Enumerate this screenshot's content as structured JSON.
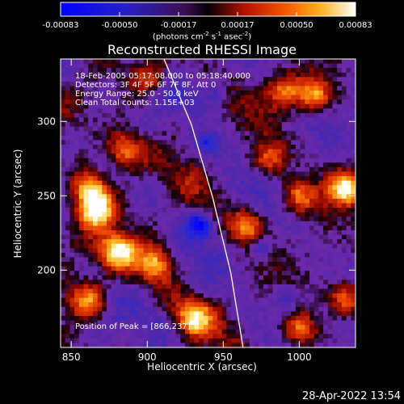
{
  "title": "Reconstructed RHESSI Image",
  "colorbar": {
    "tick_labels": [
      "-0.00083",
      "-0.00050",
      "-0.00017",
      "0.00017",
      "0.00050",
      "0.00083"
    ],
    "units": {
      "pre": "(photons cm",
      "exp1": "-2",
      "mid1": " s",
      "exp2": "-1",
      "mid2": " asec",
      "exp3": "-2",
      "post": ")"
    }
  },
  "info_lines": [
    "18-Feb-2005 05:17:08.000 to 05:18:40.000",
    "Detectors: 3F 4F 5F 6F 7F 8F, Att 0",
    "Energy Range: 25.0 - 50.0 keV",
    "Clean     Total counts: 1.15E+03"
  ],
  "peak_label": "Position of Peak = [866,237]",
  "timestamp": "28-Apr-2022 13:54",
  "chart_data": {
    "type": "heatmap",
    "title": "Reconstructed RHESSI Image",
    "xlabel": "Heliocentric X (arcsec)",
    "ylabel": "Heliocentric Y (arcsec)",
    "xlim": [
      843,
      1037
    ],
    "ylim": [
      148,
      342
    ],
    "xticks": [
      850,
      900,
      950,
      1000
    ],
    "yticks": [
      200,
      250,
      300
    ],
    "color_range": [
      -0.00083,
      0.00083
    ],
    "colormap": "blue-purple-red-yellow-white",
    "peak": [
      866,
      237
    ],
    "limb_points": [
      [
        911,
        342
      ],
      [
        929,
        298
      ],
      [
        943,
        249
      ],
      [
        955,
        198
      ],
      [
        963,
        148
      ]
    ],
    "bright_sources": [
      {
        "x": 866,
        "y": 240,
        "level": 0.95
      },
      {
        "x": 862,
        "y": 255,
        "level": 0.75
      },
      {
        "x": 880,
        "y": 213,
        "level": 0.7
      },
      {
        "x": 905,
        "y": 205,
        "level": 0.6
      },
      {
        "x": 885,
        "y": 280,
        "level": 0.55
      },
      {
        "x": 930,
        "y": 168,
        "level": 0.55
      },
      {
        "x": 1030,
        "y": 255,
        "level": 0.9
      },
      {
        "x": 1010,
        "y": 318,
        "level": 0.6
      },
      {
        "x": 990,
        "y": 320,
        "level": 0.55
      },
      {
        "x": 965,
        "y": 230,
        "level": 0.45
      },
      {
        "x": 980,
        "y": 275,
        "level": 0.4
      },
      {
        "x": 1000,
        "y": 250,
        "level": 0.45
      },
      {
        "x": 1000,
        "y": 160,
        "level": 0.5
      },
      {
        "x": 1030,
        "y": 180,
        "level": 0.5
      },
      {
        "x": 860,
        "y": 180,
        "level": 0.45
      },
      {
        "x": 900,
        "y": 330,
        "level": 0.35
      }
    ],
    "dark_spots": [
      {
        "x": 935,
        "y": 230,
        "level": -0.7
      },
      {
        "x": 940,
        "y": 285,
        "level": -0.5
      },
      {
        "x": 975,
        "y": 215,
        "level": -0.5
      },
      {
        "x": 990,
        "y": 180,
        "level": -0.4
      },
      {
        "x": 945,
        "y": 320,
        "level": -0.4
      }
    ]
  }
}
